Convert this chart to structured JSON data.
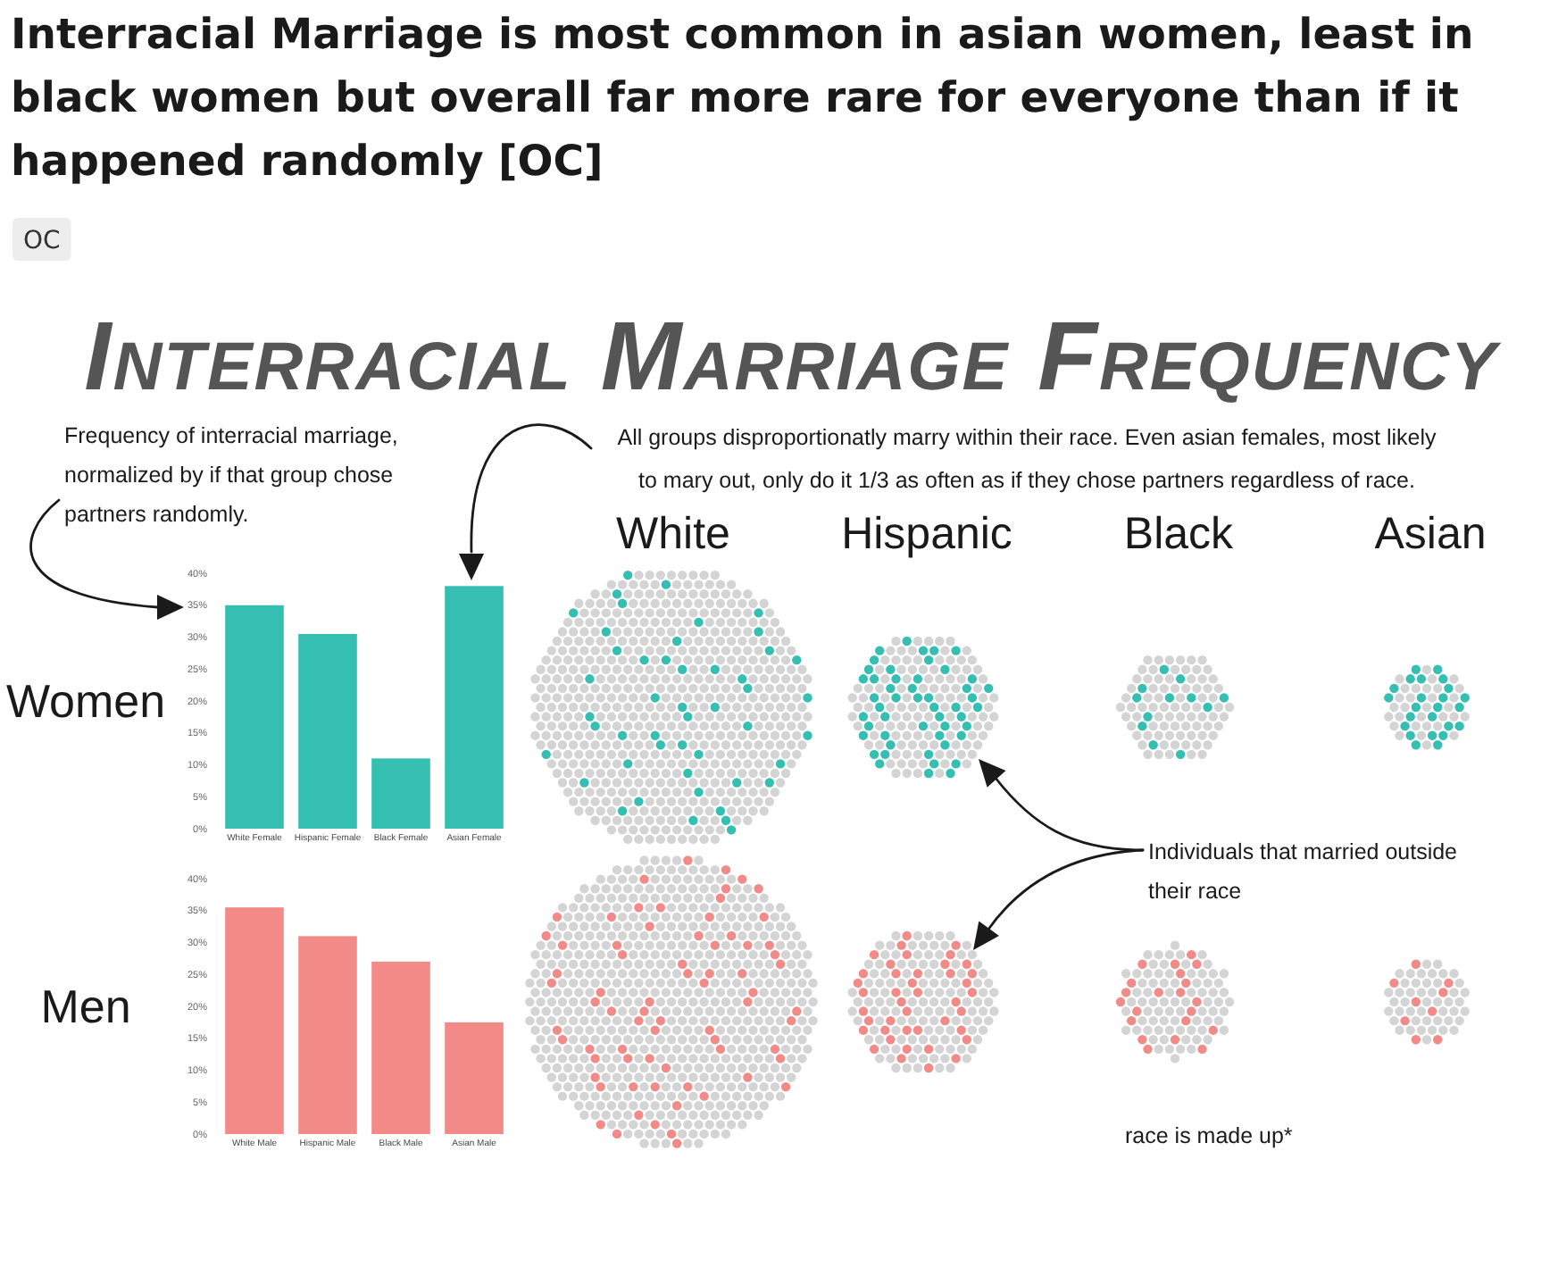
{
  "chart_data": [
    {
      "type": "other",
      "title": "Interracial Marriage is most common in asian women, least in black women but overall far more rare for everyone than if it happened randomly [OC]",
      "annotations": [
        "OC"
      ]
    },
    {
      "type": "other",
      "title": "Interracial Marriage Frequency",
      "annotations": [
        "Frequency of interracial marriage, normalized by if that group chose partners randomly.",
        "All groups disproportionatly marry within their race. Even asian females, most likely to mary out, only do it 1/3 as often as if they chose partners regardless of race.",
        "White",
        "Hispanic",
        "Black",
        "Asian",
        "Individuals that married outside their race",
        "race is made up*"
      ]
    },
    {
      "type": "bar",
      "ylabel": "Women",
      "categories": [
        "White Female",
        "Hispanic Female",
        "Black Female",
        "Asian Female"
      ],
      "values": [
        35,
        30.5,
        11,
        38
      ],
      "color": "#35bfb2",
      "ylim": [
        0,
        40
      ],
      "yticks": [
        {
          "value": 0,
          "label": "0%"
        },
        {
          "value": 5,
          "label": "5%"
        },
        {
          "value": 10,
          "label": "10%"
        },
        {
          "value": 15,
          "label": "15%"
        },
        {
          "value": 20,
          "label": "20%"
        },
        {
          "value": 25,
          "label": "25%"
        },
        {
          "value": 30,
          "label": "30%"
        },
        {
          "value": 35,
          "label": "35%"
        },
        {
          "value": 40,
          "label": "40%"
        }
      ]
    },
    {
      "type": "bar",
      "ylabel": "Men",
      "categories": [
        "White Male",
        "Hispanic Male",
        "Black Male",
        "Asian Male"
      ],
      "values": [
        35.5,
        31,
        27,
        17.5
      ],
      "color": "#f28b88",
      "ylim": [
        0,
        40
      ],
      "yticks": [
        {
          "value": 0,
          "label": "0%"
        },
        {
          "value": 5,
          "label": "5%"
        },
        {
          "value": 10,
          "label": "10%"
        },
        {
          "value": 15,
          "label": "15%"
        },
        {
          "value": 20,
          "label": "20%"
        },
        {
          "value": 25,
          "label": "25%"
        },
        {
          "value": 30,
          "label": "30%"
        },
        {
          "value": 35,
          "label": "35%"
        },
        {
          "value": 40,
          "label": "40%"
        }
      ]
    }
  ]
}
